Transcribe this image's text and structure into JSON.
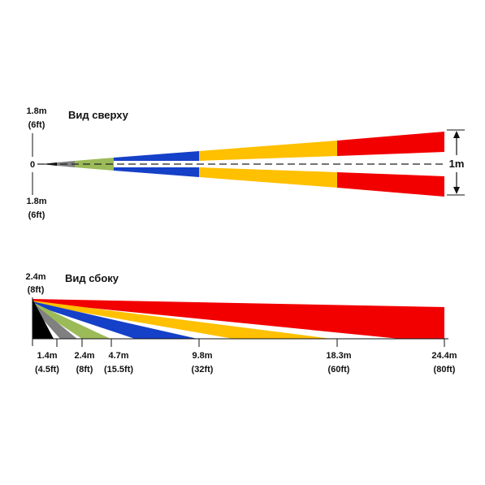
{
  "top_view": {
    "title": "Вид сверху",
    "upper_label_m": "1.8m",
    "upper_label_ft": "(6ft)",
    "origin_label": "0",
    "lower_label_m": "1.8m",
    "lower_label_ft": "(6ft)",
    "width_label": "1m"
  },
  "side_view": {
    "title": "Вид сбоку",
    "height_label_m": "2.4m",
    "height_label_ft": "(8ft)",
    "ticks": [
      {
        "m": "1.4m",
        "ft": "(4.5ft)"
      },
      {
        "m": "2.4m",
        "ft": "(8ft)"
      },
      {
        "m": "4.7m",
        "ft": "(15.5ft)"
      },
      {
        "m": "9.8m",
        "ft": "(32ft)"
      },
      {
        "m": "18.3m",
        "ft": "(60ft)"
      },
      {
        "m": "24.4m",
        "ft": "(80ft)"
      }
    ]
  },
  "colors": {
    "black": "#000000",
    "gray": "#808080",
    "green": "#9BBB59",
    "blue": "#1540C8",
    "yellow": "#FFC000",
    "red": "#F20000"
  }
}
